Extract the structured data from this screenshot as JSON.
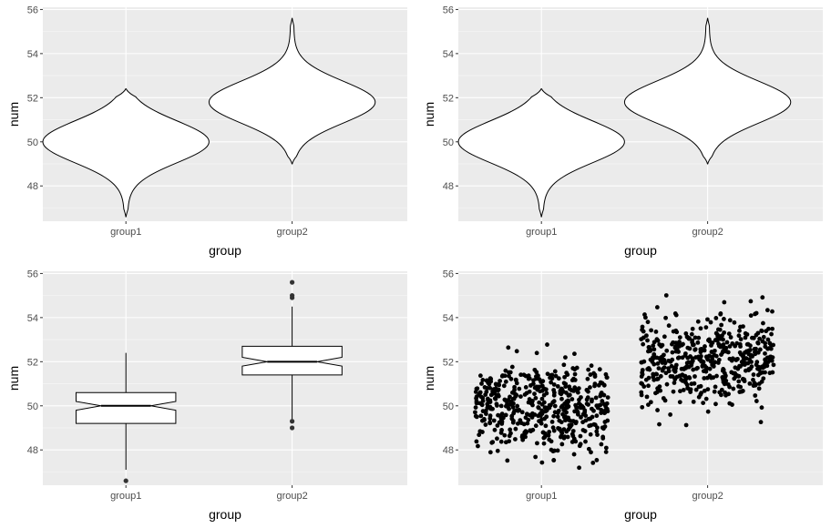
{
  "colors": {
    "panel": "#ebebeb",
    "grid_major": "#ffffff",
    "grid_minor": "#f5f5f5",
    "ink": "#000000",
    "tick_text": "#4d4d4d"
  },
  "chart_data": [
    {
      "type": "violin",
      "xlabel": "group",
      "ylabel": "num",
      "categories": [
        "group1",
        "group2"
      ],
      "ylim": [
        46.4,
        56.1
      ],
      "yticks": [
        "48",
        "50",
        "52",
        "54",
        "56"
      ],
      "series": [
        {
          "category": "group1",
          "min": 46.6,
          "max": 52.4,
          "peak": 50.0
        },
        {
          "category": "group2",
          "min": 49.0,
          "max": 55.6,
          "peak": 51.8
        }
      ]
    },
    {
      "type": "violin",
      "xlabel": "group",
      "ylabel": "num",
      "categories": [
        "group1",
        "group2"
      ],
      "ylim": [
        46.4,
        56.1
      ],
      "yticks": [
        "48",
        "50",
        "52",
        "54",
        "56"
      ],
      "series": [
        {
          "category": "group1",
          "min": 46.6,
          "max": 52.4,
          "peak": 50.0
        },
        {
          "category": "group2",
          "min": 49.0,
          "max": 55.6,
          "peak": 51.8
        }
      ]
    },
    {
      "type": "boxplot",
      "notched": true,
      "xlabel": "group",
      "ylabel": "num",
      "categories": [
        "group1",
        "group2"
      ],
      "ylim": [
        46.4,
        56.1
      ],
      "yticks": [
        "48",
        "50",
        "52",
        "54",
        "56"
      ],
      "series": [
        {
          "category": "group1",
          "whisker_low": 47.1,
          "q1": 49.2,
          "median": 50.0,
          "q3": 50.6,
          "whisker_high": 52.4,
          "outliers": [
            46.6
          ]
        },
        {
          "category": "group2",
          "whisker_low": 49.4,
          "q1": 51.4,
          "median": 52.0,
          "q3": 52.7,
          "whisker_high": 54.5,
          "outliers": [
            49.3,
            49.0,
            55.0,
            54.9,
            55.6
          ]
        }
      ]
    },
    {
      "type": "scatter",
      "jitter": true,
      "xlabel": "group",
      "ylabel": "num",
      "categories": [
        "group1",
        "group2"
      ],
      "ylim": [
        46.4,
        56.1
      ],
      "yticks": [
        "48",
        "50",
        "52",
        "54",
        "56"
      ],
      "series": [
        {
          "category": "group1",
          "n": 500,
          "mean": 50.0,
          "sd": 1.0
        },
        {
          "category": "group2",
          "n": 500,
          "mean": 52.0,
          "sd": 1.0
        }
      ]
    }
  ]
}
